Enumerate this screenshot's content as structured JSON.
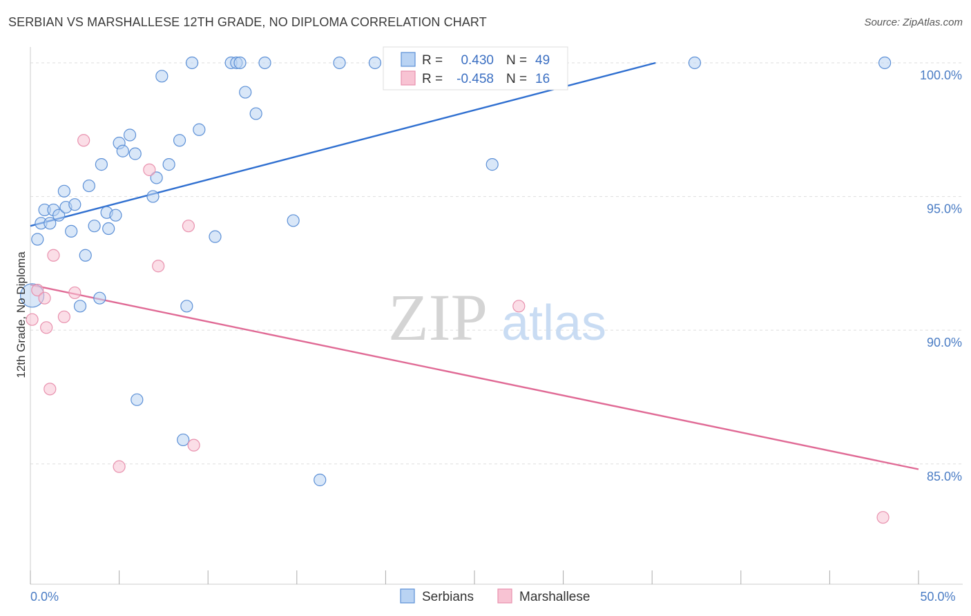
{
  "title": "SERBIAN VS MARSHALLESE 12TH GRADE, NO DIPLOMA CORRELATION CHART",
  "source": "Source: ZipAtlas.com",
  "watermark": {
    "zip": "ZIP",
    "atlas": "atlas"
  },
  "colors": {
    "serbians_fill": "#b9d3f3",
    "serbians_stroke": "#5b8fd6",
    "serbians_line": "#2f6fd0",
    "marshallese_fill": "#f8c3d3",
    "marshallese_stroke": "#e890ad",
    "marshallese_line": "#e06a95",
    "tick_text": "#4a7cc4",
    "grid": "#dddddd"
  },
  "legend": {
    "rows": [
      {
        "r_label": "R =",
        "r_value": "0.430",
        "n_label": "N =",
        "n_value": "49",
        "series": "serbians"
      },
      {
        "r_label": "R =",
        "r_value": "-0.458",
        "n_label": "N =",
        "n_value": "16",
        "series": "marshallese"
      }
    ]
  },
  "bottom_legend": [
    {
      "label": "Serbians",
      "series": "serbians"
    },
    {
      "label": "Marshallese",
      "series": "marshallese"
    }
  ],
  "chart_data": {
    "type": "scatter",
    "title": "SERBIAN VS MARSHALLESE 12TH GRADE, NO DIPLOMA CORRELATION CHART",
    "xlabel": "",
    "ylabel": "12th Grade, No Diploma",
    "xlim": [
      0,
      50
    ],
    "ylim": [
      80.5,
      100.8
    ],
    "x_tick_labels": [
      {
        "value": 0,
        "label": "0.0%"
      },
      {
        "value": 50,
        "label": "50.0%"
      }
    ],
    "x_minor_ticks": [
      0,
      5,
      10,
      15,
      20,
      25,
      30,
      35,
      40,
      45,
      50
    ],
    "y_ticks": [
      {
        "value": 100,
        "label": "100.0%"
      },
      {
        "value": 95,
        "label": "95.0%"
      },
      {
        "value": 90,
        "label": "90.0%"
      },
      {
        "value": 85,
        "label": "85.0%"
      }
    ],
    "grid": true,
    "legend_position": "top-center",
    "series": [
      {
        "name": "Serbians",
        "key": "serbians",
        "points": [
          [
            0.1,
            91.3
          ],
          [
            0.4,
            93.4
          ],
          [
            0.6,
            94.0
          ],
          [
            0.8,
            94.5
          ],
          [
            1.1,
            94.0
          ],
          [
            1.3,
            94.5
          ],
          [
            1.6,
            94.3
          ],
          [
            1.9,
            95.2
          ],
          [
            2.0,
            94.6
          ],
          [
            2.3,
            93.7
          ],
          [
            2.5,
            94.7
          ],
          [
            2.8,
            90.9
          ],
          [
            3.1,
            92.8
          ],
          [
            3.3,
            95.4
          ],
          [
            3.6,
            93.9
          ],
          [
            3.9,
            91.2
          ],
          [
            4.0,
            96.2
          ],
          [
            4.3,
            94.4
          ],
          [
            4.4,
            93.8
          ],
          [
            4.8,
            94.3
          ],
          [
            5.0,
            97.0
          ],
          [
            5.2,
            96.7
          ],
          [
            5.6,
            97.3
          ],
          [
            5.9,
            96.6
          ],
          [
            6.0,
            87.4
          ],
          [
            6.9,
            95.0
          ],
          [
            7.1,
            95.7
          ],
          [
            7.4,
            99.5
          ],
          [
            7.8,
            96.2
          ],
          [
            8.4,
            97.1
          ],
          [
            8.6,
            85.9
          ],
          [
            8.8,
            90.9
          ],
          [
            9.1,
            100.0
          ],
          [
            9.5,
            97.5
          ],
          [
            10.4,
            93.5
          ],
          [
            11.3,
            100.0
          ],
          [
            11.6,
            100.0
          ],
          [
            11.8,
            100.0
          ],
          [
            12.1,
            98.9
          ],
          [
            12.7,
            98.1
          ],
          [
            13.2,
            100.0
          ],
          [
            14.8,
            94.1
          ],
          [
            16.3,
            84.4
          ],
          [
            17.4,
            100.0
          ],
          [
            19.4,
            100.0
          ],
          [
            20.6,
            100.0
          ],
          [
            26.0,
            96.2
          ],
          [
            37.4,
            100.0
          ],
          [
            48.1,
            100.0
          ]
        ],
        "point_sizes": {
          "default": 8,
          "large_at_index_0": 17
        },
        "trend": {
          "x": [
            0,
            35.2
          ],
          "y": [
            93.9,
            100.0
          ]
        }
      },
      {
        "name": "Marshallese",
        "key": "marshallese",
        "points": [
          [
            0.1,
            90.4
          ],
          [
            0.4,
            91.5
          ],
          [
            0.8,
            91.2
          ],
          [
            0.9,
            90.1
          ],
          [
            1.1,
            87.8
          ],
          [
            1.3,
            92.8
          ],
          [
            1.9,
            90.5
          ],
          [
            2.5,
            91.4
          ],
          [
            3.0,
            97.1
          ],
          [
            5.0,
            84.9
          ],
          [
            6.7,
            96.0
          ],
          [
            7.2,
            92.4
          ],
          [
            8.9,
            93.9
          ],
          [
            9.2,
            85.7
          ],
          [
            27.5,
            90.9
          ],
          [
            48.0,
            83.0
          ]
        ],
        "point_sizes": {
          "default": 8
        },
        "trend": {
          "x": [
            0,
            50
          ],
          "y": [
            91.7,
            84.8
          ]
        }
      }
    ]
  }
}
